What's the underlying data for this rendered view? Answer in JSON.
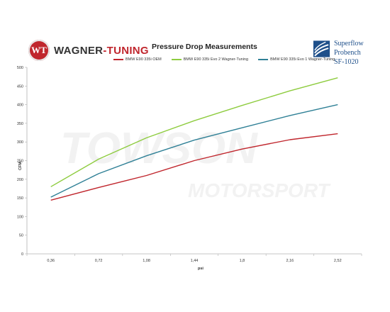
{
  "header": {
    "brand_left_main": "WAGNER",
    "brand_left_accent": "-TUNING",
    "brand_left_badge": "WT",
    "brand_right_line1": "Superflow Probench",
    "brand_right_line2": "SF-1020",
    "watermark_line1": "TOWSON",
    "watermark_line2": "MOTORSPORT"
  },
  "colors": {
    "oem": "#c0262d",
    "evo2": "#8ecc3f",
    "evo1": "#2f8096",
    "axis": "#b0b0b0"
  },
  "chart_data": {
    "type": "line",
    "title": "Pressure Drop Measurements",
    "xlabel": "psi",
    "ylabel": "CFM",
    "categories": [
      "0,36",
      "0,72",
      "1,08",
      "1,44",
      "1,8",
      "2,16",
      "2,52"
    ],
    "ylim": [
      0,
      500
    ],
    "yticks": [
      0,
      50,
      100,
      150,
      200,
      250,
      300,
      350,
      400,
      450,
      500
    ],
    "legend_position": "top",
    "grid": false,
    "series": [
      {
        "name": "BMW E90 335i OEM",
        "color_key": "oem",
        "values": [
          144,
          178,
          210,
          250,
          281,
          306,
          322
        ]
      },
      {
        "name": "BMW E90 335i Evo 2 Wagner-Tuning",
        "color_key": "evo2",
        "values": [
          180,
          254,
          311,
          357,
          398,
          437,
          472
        ]
      },
      {
        "name": "BMW E90 335i Evo 1 Wagner-Tuning",
        "color_key": "evo1",
        "values": [
          152,
          215,
          263,
          305,
          338,
          371,
          400
        ]
      }
    ]
  }
}
